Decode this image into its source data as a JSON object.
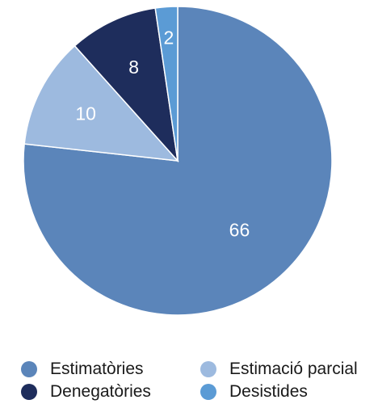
{
  "chart_data": {
    "type": "pie",
    "categories": [
      "Estimatòries",
      "Estimació parcial",
      "Denegatòries",
      "Desistides"
    ],
    "values": [
      66,
      10,
      8,
      2
    ],
    "colors": [
      "#5b85ba",
      "#9dbadf",
      "#1e2d5c",
      "#5b9bd5"
    ],
    "data_labels": [
      "66",
      "10",
      "8",
      "2"
    ],
    "start_angle_deg": 0,
    "direction": "clockwise",
    "legend_position": "bottom"
  },
  "legend": {
    "items": [
      {
        "label": "Estimatòries",
        "color": "#5b85ba"
      },
      {
        "label": "Estimació parcial",
        "color": "#9dbadf"
      },
      {
        "label": "Denegatòries",
        "color": "#1e2d5c"
      },
      {
        "label": "Desistides",
        "color": "#5b9bd5"
      }
    ]
  }
}
